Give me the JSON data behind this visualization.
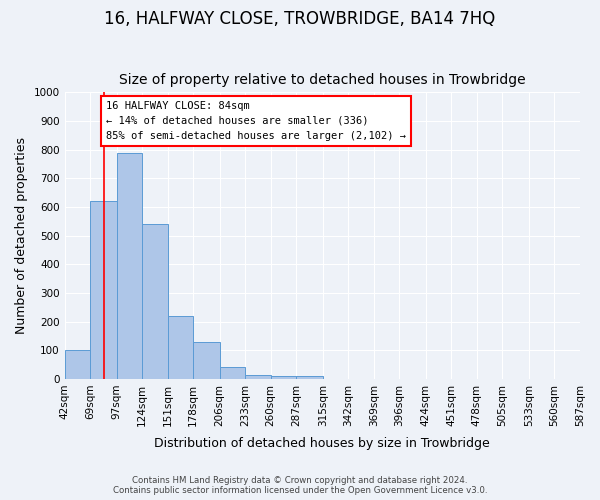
{
  "title": "16, HALFWAY CLOSE, TROWBRIDGE, BA14 7HQ",
  "subtitle": "Size of property relative to detached houses in Trowbridge",
  "xlabel": "Distribution of detached houses by size in Trowbridge",
  "ylabel": "Number of detached properties",
  "bin_edges": [
    42,
    69,
    97,
    124,
    151,
    178,
    206,
    233,
    260,
    287,
    315,
    342,
    369,
    396,
    424,
    451,
    478,
    505,
    533,
    560,
    587
  ],
  "bar_heights": [
    100,
    620,
    790,
    540,
    220,
    130,
    40,
    15,
    10,
    10,
    0,
    0,
    0,
    0,
    0,
    0,
    0,
    0,
    0,
    0
  ],
  "bar_color": "#aec6e8",
  "bar_edge_color": "#5b9bd5",
  "ylim": [
    0,
    1000
  ],
  "yticks": [
    0,
    100,
    200,
    300,
    400,
    500,
    600,
    700,
    800,
    900,
    1000
  ],
  "red_line_x": 84,
  "annotation_line1": "16 HALFWAY CLOSE: 84sqm",
  "annotation_line2": "← 14% of detached houses are smaller (336)",
  "annotation_line3": "85% of semi-detached houses are larger (2,102) →",
  "footer_line1": "Contains HM Land Registry data © Crown copyright and database right 2024.",
  "footer_line2": "Contains public sector information licensed under the Open Government Licence v3.0.",
  "bg_color": "#eef2f8",
  "grid_color": "#ffffff",
  "title_fontsize": 12,
  "subtitle_fontsize": 10,
  "axis_label_fontsize": 9,
  "tick_fontsize": 7.5
}
